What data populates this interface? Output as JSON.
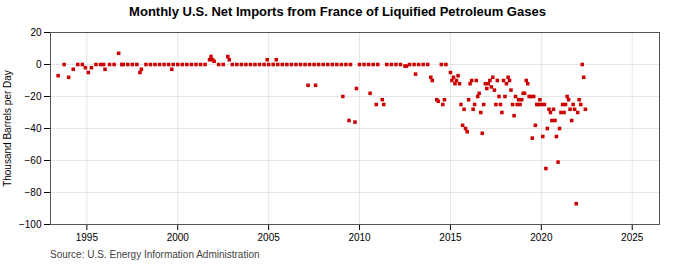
{
  "chart_data": {
    "type": "scatter",
    "title": "Monthly U.S. Net Imports from France of Liquified Petroleum Gases",
    "ylabel": "Thousand Barrels per Day",
    "source": "Source: U.S. Energy Information Administration",
    "color": "#cc0000",
    "marker": "square",
    "grid": true,
    "xlim": [
      1993.0,
      2026.5
    ],
    "ylim": [
      -100,
      20
    ],
    "xticks": [
      1995,
      2000,
      2005,
      2010,
      2015,
      2020,
      2025
    ],
    "yticks": [
      -100,
      -80,
      -60,
      -40,
      -20,
      0,
      20
    ],
    "x": [
      1993.42,
      1993.75,
      1994.0,
      1994.25,
      1994.5,
      1994.75,
      1994.92,
      1995.08,
      1995.25,
      1995.5,
      1995.75,
      1995.92,
      1996.0,
      1996.25,
      1996.5,
      1996.75,
      1996.92,
      1997.0,
      1997.25,
      1997.5,
      1997.75,
      1997.92,
      1998.0,
      1998.25,
      1998.5,
      1998.75,
      1999.0,
      1999.25,
      1999.5,
      1999.67,
      1999.75,
      2000.0,
      2000.25,
      2000.5,
      2000.75,
      2001.0,
      2001.25,
      2001.5,
      2001.75,
      2001.83,
      2001.92,
      2002.0,
      2002.25,
      2002.5,
      2002.75,
      2002.83,
      2003.0,
      2003.25,
      2003.5,
      2003.75,
      2004.0,
      2004.25,
      2004.5,
      2004.75,
      2004.92,
      2005.0,
      2005.25,
      2005.42,
      2005.5,
      2005.75,
      2006.0,
      2006.25,
      2006.5,
      2006.75,
      2007.0,
      2007.17,
      2007.25,
      2007.5,
      2007.58,
      2007.75,
      2008.0,
      2008.25,
      2008.5,
      2008.75,
      2009.0,
      2009.08,
      2009.25,
      2009.42,
      2009.5,
      2009.75,
      2009.83,
      2010.0,
      2010.25,
      2010.5,
      2010.58,
      2010.75,
      2010.92,
      2011.0,
      2011.25,
      2011.33,
      2011.5,
      2011.75,
      2012.0,
      2012.25,
      2012.5,
      2012.58,
      2012.75,
      2013.0,
      2013.08,
      2013.25,
      2013.5,
      2013.75,
      2013.92,
      2014.0,
      2014.25,
      2014.33,
      2014.5,
      2014.58,
      2014.67,
      2014.75,
      2015.0,
      2015.08,
      2015.17,
      2015.25,
      2015.33,
      2015.42,
      2015.5,
      2015.58,
      2015.67,
      2015.75,
      2015.83,
      2015.92,
      2016.0,
      2016.08,
      2016.17,
      2016.25,
      2016.33,
      2016.42,
      2016.5,
      2016.58,
      2016.67,
      2016.75,
      2016.83,
      2016.92,
      2017.0,
      2017.08,
      2017.17,
      2017.25,
      2017.33,
      2017.42,
      2017.5,
      2017.58,
      2017.67,
      2017.75,
      2017.83,
      2017.92,
      2018.0,
      2018.08,
      2018.17,
      2018.25,
      2018.33,
      2018.42,
      2018.5,
      2018.58,
      2018.67,
      2018.75,
      2018.83,
      2018.92,
      2019.0,
      2019.08,
      2019.17,
      2019.25,
      2019.33,
      2019.42,
      2019.5,
      2019.58,
      2019.67,
      2019.75,
      2019.83,
      2019.92,
      2020.0,
      2020.08,
      2020.17,
      2020.25,
      2020.33,
      2020.42,
      2020.5,
      2020.58,
      2020.67,
      2020.75,
      2020.83,
      2020.92,
      2021.0,
      2021.08,
      2021.17,
      2021.25,
      2021.33,
      2021.42,
      2021.5,
      2021.58,
      2021.67,
      2021.75,
      2021.83,
      2021.92,
      2022.0,
      2022.08,
      2022.17,
      2022.25,
      2022.33,
      2022.42
    ],
    "values": [
      -7,
      0,
      -8,
      -3,
      0,
      0,
      -2,
      -5,
      -2,
      0,
      0,
      0,
      -3,
      0,
      0,
      7,
      0,
      0,
      0,
      0,
      0,
      -5,
      -3,
      0,
      0,
      0,
      0,
      0,
      0,
      -3,
      0,
      0,
      0,
      0,
      0,
      0,
      0,
      0,
      3,
      5,
      3,
      2,
      0,
      0,
      5,
      3,
      0,
      0,
      0,
      0,
      0,
      0,
      0,
      0,
      3,
      0,
      0,
      3,
      0,
      0,
      0,
      0,
      0,
      0,
      0,
      -13,
      0,
      0,
      -13,
      0,
      0,
      0,
      0,
      0,
      0,
      -20,
      0,
      -35,
      0,
      -36,
      -15,
      0,
      0,
      0,
      -18,
      0,
      -25,
      0,
      -22,
      -25,
      0,
      0,
      0,
      0,
      -1,
      -1,
      0,
      0,
      -6,
      0,
      0,
      0,
      -8,
      -10,
      -22,
      -23,
      0,
      -25,
      -22,
      0,
      -5,
      -10,
      -8,
      -12,
      -10,
      -7,
      -12,
      -25,
      -38,
      -28,
      -40,
      -42,
      -22,
      -12,
      -10,
      -28,
      -25,
      -10,
      -20,
      -18,
      -30,
      -43,
      -25,
      -12,
      -15,
      -12,
      -10,
      -14,
      -8,
      -16,
      -25,
      -10,
      -20,
      -25,
      -30,
      -10,
      -20,
      -12,
      -8,
      -10,
      -16,
      -25,
      -32,
      -20,
      -25,
      -22,
      -25,
      -22,
      -18,
      -18,
      -10,
      -12,
      -20,
      -20,
      -46,
      -20,
      -38,
      -25,
      -25,
      -22,
      -25,
      -45,
      -25,
      -65,
      -40,
      -28,
      -30,
      -35,
      -28,
      -35,
      -45,
      -61,
      -40,
      -30,
      -25,
      -30,
      -25,
      -20,
      -22,
      -28,
      -35,
      -25,
      -28,
      -87,
      -30,
      -22,
      -25,
      0,
      -8,
      -28
    ]
  }
}
